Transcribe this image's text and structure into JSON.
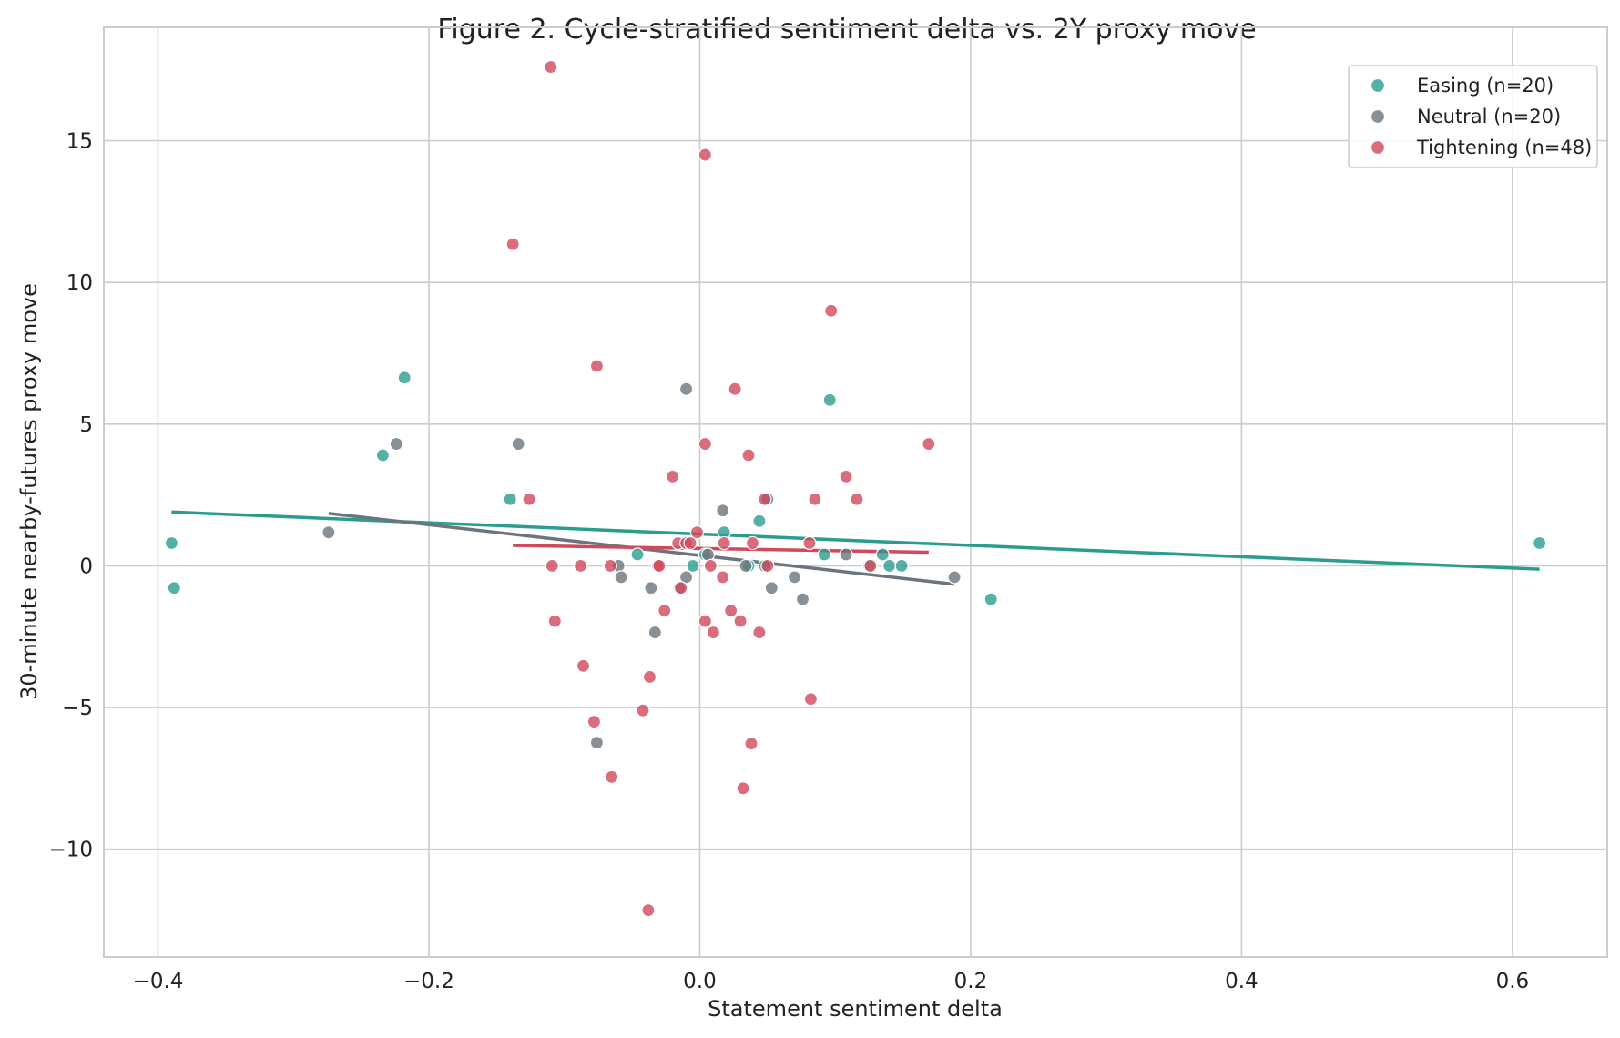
{
  "chart_data": {
    "type": "scatter",
    "title": "Figure 2. Cycle-stratified sentiment delta vs. 2Y proxy move",
    "xlabel": "Statement sentiment delta",
    "ylabel": "30-minute nearby-futures proxy move",
    "xlim": [
      -0.44,
      0.67
    ],
    "ylim": [
      -13.8,
      19.0
    ],
    "x_ticks": [
      -0.4,
      -0.2,
      0.0,
      0.2,
      0.4,
      0.6
    ],
    "x_tick_labels": [
      "−0.4",
      "−0.2",
      "0.0",
      "0.2",
      "0.4",
      "0.6"
    ],
    "y_ticks": [
      15,
      10,
      5,
      0,
      -5,
      -10
    ],
    "y_tick_labels": [
      "15",
      "10",
      "5",
      "0",
      "−5",
      "−10"
    ],
    "grid": true,
    "legend_position": "top-right",
    "series": [
      {
        "name": "Easing (n=20)",
        "color": "#2a9d8f",
        "points": [
          [
            -0.39,
            0.8
          ],
          [
            -0.388,
            -0.78
          ],
          [
            -0.218,
            6.64
          ],
          [
            -0.234,
            3.9
          ],
          [
            -0.14,
            2.35
          ],
          [
            -0.046,
            0.4
          ],
          [
            -0.005,
            0.0
          ],
          [
            0.018,
            1.18
          ],
          [
            0.036,
            0.0
          ],
          [
            0.044,
            1.58
          ],
          [
            0.048,
            0.0
          ],
          [
            0.092,
            0.4
          ],
          [
            0.096,
            5.85
          ],
          [
            0.125,
            0.0
          ],
          [
            0.135,
            0.4
          ],
          [
            0.14,
            0.0
          ],
          [
            0.149,
            0.0
          ],
          [
            0.215,
            -1.18
          ],
          [
            0.62,
            0.8
          ],
          [
            0.004,
            0.4
          ]
        ],
        "trend": [
          [
            -0.39,
            1.9
          ],
          [
            0.62,
            -0.12
          ]
        ]
      },
      {
        "name": "Neutral (n=20)",
        "color": "#6c757d",
        "points": [
          [
            -0.274,
            1.18
          ],
          [
            -0.224,
            4.3
          ],
          [
            -0.134,
            4.3
          ],
          [
            -0.06,
            0.0
          ],
          [
            -0.058,
            -0.4
          ],
          [
            -0.036,
            -0.78
          ],
          [
            -0.033,
            -2.35
          ],
          [
            -0.01,
            6.24
          ],
          [
            -0.01,
            -0.4
          ],
          [
            -0.015,
            -0.78
          ],
          [
            0.006,
            0.4
          ],
          [
            0.017,
            1.95
          ],
          [
            0.034,
            0.0
          ],
          [
            0.05,
            2.35
          ],
          [
            0.053,
            -0.78
          ],
          [
            0.07,
            -0.4
          ],
          [
            0.076,
            -1.18
          ],
          [
            0.108,
            0.4
          ],
          [
            0.188,
            -0.4
          ],
          [
            -0.076,
            -6.24
          ]
        ],
        "trend": [
          [
            -0.274,
            1.85
          ],
          [
            0.188,
            -0.65
          ]
        ]
      },
      {
        "name": "Tightening (n=48)",
        "color": "#d1495b",
        "points": [
          [
            -0.11,
            17.6
          ],
          [
            0.004,
            14.5
          ],
          [
            -0.138,
            11.35
          ],
          [
            -0.076,
            7.05
          ],
          [
            0.097,
            9.0
          ],
          [
            0.026,
            6.24
          ],
          [
            0.169,
            4.3
          ],
          [
            0.004,
            4.3
          ],
          [
            0.036,
            3.9
          ],
          [
            -0.02,
            3.15
          ],
          [
            0.108,
            3.15
          ],
          [
            -0.126,
            2.35
          ],
          [
            0.048,
            2.35
          ],
          [
            0.085,
            2.35
          ],
          [
            0.116,
            2.35
          ],
          [
            -0.002,
            1.18
          ],
          [
            -0.016,
            0.8
          ],
          [
            -0.01,
            0.8
          ],
          [
            -0.007,
            0.8
          ],
          [
            0.018,
            0.8
          ],
          [
            0.039,
            0.8
          ],
          [
            0.081,
            0.8
          ],
          [
            -0.109,
            0.0
          ],
          [
            -0.088,
            0.0
          ],
          [
            -0.066,
            0.0
          ],
          [
            -0.031,
            0.0
          ],
          [
            -0.03,
            0.0
          ],
          [
            0.008,
            0.0
          ],
          [
            0.05,
            0.0
          ],
          [
            0.126,
            0.0
          ],
          [
            0.017,
            -0.4
          ],
          [
            -0.014,
            -0.78
          ],
          [
            -0.026,
            -1.58
          ],
          [
            0.023,
            -1.58
          ],
          [
            -0.107,
            -1.95
          ],
          [
            0.004,
            -1.95
          ],
          [
            0.03,
            -1.95
          ],
          [
            0.01,
            -2.35
          ],
          [
            0.044,
            -2.35
          ],
          [
            -0.086,
            -3.53
          ],
          [
            -0.037,
            -3.92
          ],
          [
            0.082,
            -4.7
          ],
          [
            -0.042,
            -5.1
          ],
          [
            -0.078,
            -5.5
          ],
          [
            0.038,
            -6.27
          ],
          [
            -0.065,
            -7.45
          ],
          [
            0.032,
            -7.85
          ],
          [
            -0.038,
            -12.15
          ]
        ],
        "trend": [
          [
            -0.138,
            0.72
          ],
          [
            0.169,
            0.48
          ]
        ]
      }
    ]
  }
}
